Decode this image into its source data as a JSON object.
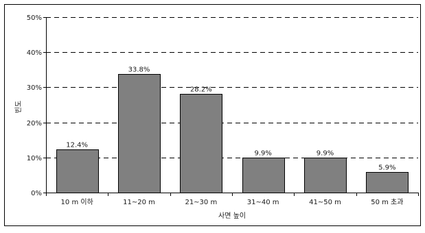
{
  "chart_data": {
    "type": "bar",
    "title": "",
    "xlabel": "사면 높이",
    "ylabel": "빈도",
    "categories": [
      "10 m 이하",
      "11~20 m",
      "21~30 m",
      "31~40 m",
      "41~50 m",
      "50 m 초과"
    ],
    "values": [
      12.4,
      33.8,
      28.2,
      9.9,
      9.9,
      5.9
    ],
    "data_labels": [
      "12.4%",
      "33.8%",
      "28.2%",
      "9.9%",
      "9.9%",
      "5.9%"
    ],
    "ylim": [
      0,
      50
    ],
    "yticks": [
      0,
      10,
      20,
      30,
      40,
      50
    ],
    "ytick_labels": [
      "0%",
      "10%",
      "20%",
      "30%",
      "40%",
      "50%"
    ],
    "grid": "horizontal dashed",
    "legend": "none",
    "colors": {
      "bar_fill": "#808080",
      "bar_stroke": "#000000",
      "grid": "#000000",
      "frame": "#000000"
    }
  }
}
